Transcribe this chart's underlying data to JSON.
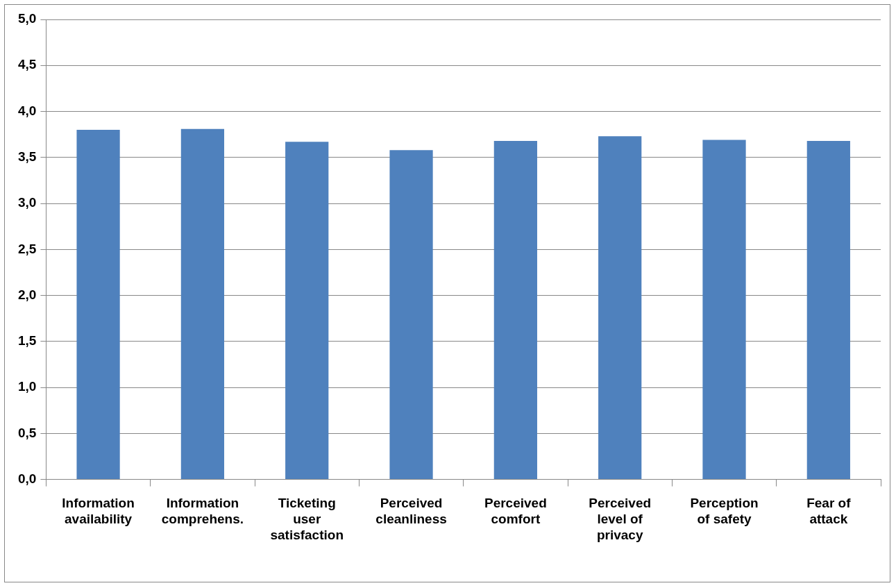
{
  "chart_data": {
    "type": "bar",
    "categories": [
      "Information availability",
      "Information comprehens.",
      "Ticketing user satisfaction",
      "Perceived cleanliness",
      "Perceived comfort",
      "Perceived level of privacy",
      "Perception of safety",
      "Fear of attack"
    ],
    "values": [
      3.8,
      3.81,
      3.67,
      3.58,
      3.68,
      3.73,
      3.69,
      3.68
    ],
    "color": "#4f81bd",
    "ylim": [
      0,
      5
    ],
    "yticks": [
      {
        "value": 0,
        "label": "0,0"
      },
      {
        "value": 0.5,
        "label": "0,5"
      },
      {
        "value": 1,
        "label": "1,0"
      },
      {
        "value": 1.5,
        "label": "1,5"
      },
      {
        "value": 2,
        "label": "2,0"
      },
      {
        "value": 2.5,
        "label": "2,5"
      },
      {
        "value": 3,
        "label": "3,0"
      },
      {
        "value": 3.5,
        "label": "3,5"
      },
      {
        "value": 4,
        "label": "4,0"
      },
      {
        "value": 4.5,
        "label": "4,5"
      },
      {
        "value": 5,
        "label": "5,0"
      }
    ],
    "grid": "y"
  }
}
